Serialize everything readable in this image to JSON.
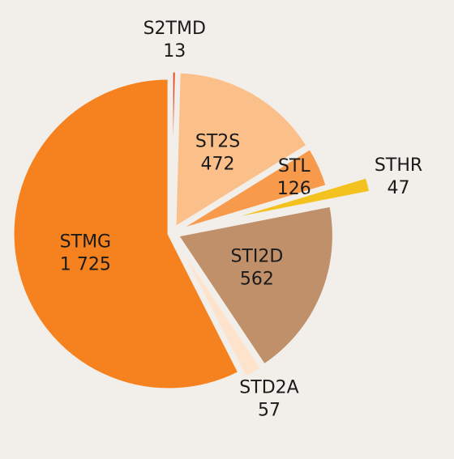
{
  "chart_data": {
    "type": "pie",
    "categories": [
      "S2TMD",
      "ST2S",
      "STL",
      "STHR",
      "STI2D",
      "STD2A",
      "STMG"
    ],
    "values": [
      13,
      472,
      126,
      47,
      562,
      57,
      1725
    ],
    "value_labels": [
      "13",
      "472",
      "126",
      "47",
      "562",
      "57",
      "1 725"
    ],
    "colors": [
      "#e8502a",
      "#fbbf8a",
      "#f89a4c",
      "#f3c21f",
      "#c0906a",
      "#fde3cc",
      "#f5821f"
    ]
  }
}
